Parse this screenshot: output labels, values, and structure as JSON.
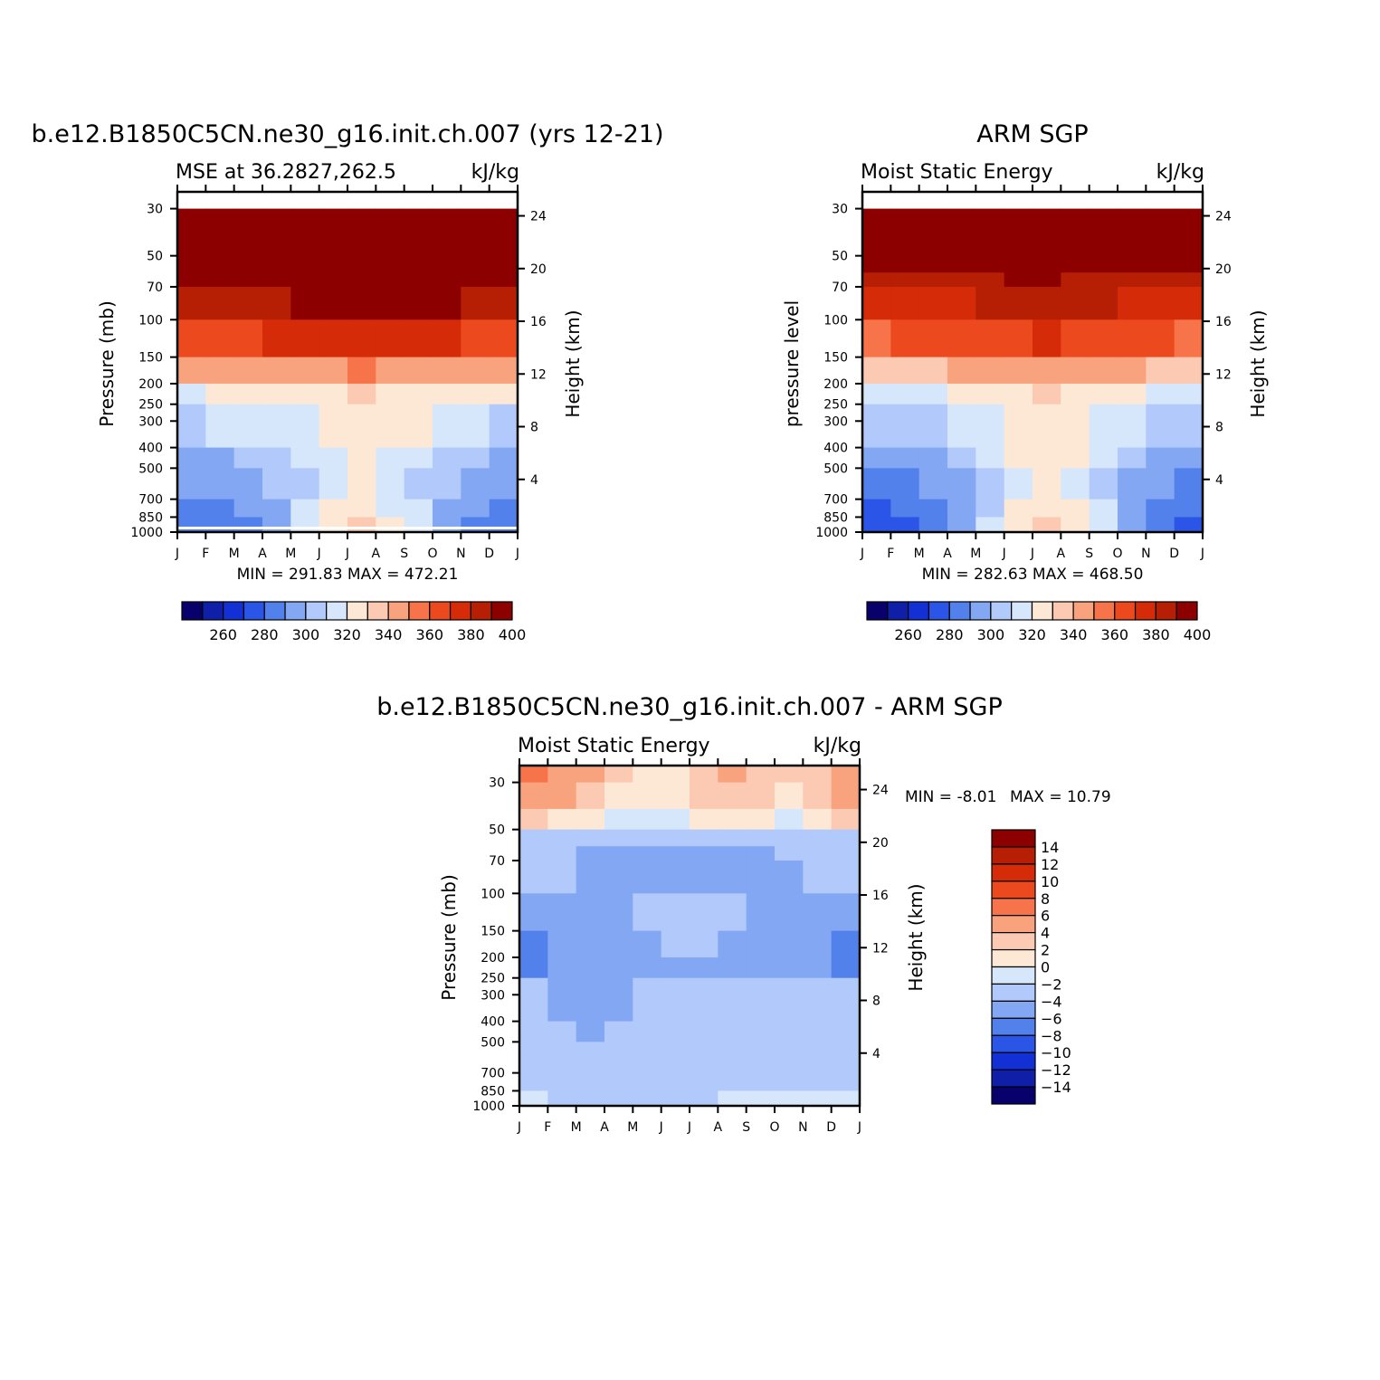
{
  "chart_data": [
    {
      "type": "heatmap",
      "id": "model",
      "title": "b.e12.B1850C5CN.ne30_g16.init.ch.007 (yrs 12-21)",
      "left_string": "MSE at 36.2827,262.5",
      "units": "kJ/kg",
      "ylabel": "Pressure (mb)",
      "ylabel_right": "Height (km)",
      "months": [
        "J",
        "F",
        "M",
        "A",
        "M",
        "J",
        "J",
        "A",
        "S",
        "O",
        "N",
        "D",
        "J"
      ],
      "pressure_ticks": [
        "30",
        "50",
        "70",
        "100",
        "150",
        "200",
        "250",
        "300",
        "400",
        "500",
        "700",
        "850",
        "1000"
      ],
      "height_ticks": [
        "24",
        "20",
        "16",
        "12",
        "8",
        "4"
      ],
      "stats": "MIN = 291.83 MAX = 472.21",
      "levels_colorbar": [
        "260",
        "280",
        "300",
        "320",
        "340",
        "360",
        "380",
        "400"
      ],
      "bottom_white_band": true,
      "bands": [
        {
          "p": 30,
          "v": [
            420,
            420,
            420,
            420,
            420,
            420,
            420,
            420,
            420,
            420,
            420,
            420,
            420
          ]
        },
        {
          "p": 50,
          "v": [
            420,
            420,
            420,
            420,
            420,
            420,
            420,
            420,
            420,
            420,
            420,
            420,
            420
          ]
        },
        {
          "p": 60,
          "v": [
            405,
            407,
            409,
            410,
            411,
            412,
            413,
            413,
            413,
            412,
            410,
            408,
            405
          ]
        },
        {
          "p": 70,
          "v": [
            396,
            397,
            398,
            399,
            400,
            401,
            402,
            403,
            402,
            401,
            399,
            397,
            396
          ]
        },
        {
          "p": 100,
          "v": [
            376,
            377,
            379,
            380,
            381,
            383,
            384,
            384,
            383,
            381,
            379,
            377,
            376
          ]
        },
        {
          "p": 150,
          "v": [
            351,
            352,
            354,
            356,
            357,
            359,
            360,
            360,
            359,
            357,
            354,
            352,
            351
          ]
        },
        {
          "p": 200,
          "v": [
            329,
            330,
            332,
            335,
            337,
            339,
            340,
            340,
            339,
            337,
            333,
            331,
            329
          ]
        },
        {
          "p": 250,
          "v": [
            318,
            319,
            321,
            324,
            327,
            331,
            335,
            336,
            333,
            328,
            323,
            320,
            318
          ]
        },
        {
          "p": 400,
          "v": [
            308,
            309,
            310,
            313,
            318,
            326,
            333,
            333,
            326,
            318,
            312,
            309,
            308
          ]
        },
        {
          "p": 500,
          "v": [
            302,
            304,
            305,
            308,
            314,
            323,
            330,
            331,
            323,
            314,
            308,
            304,
            302
          ]
        },
        {
          "p": 700,
          "v": [
            295,
            297,
            300,
            304,
            313,
            327,
            333,
            333,
            326,
            315,
            304,
            298,
            295
          ]
        },
        {
          "p": 850,
          "v": [
            292,
            293,
            296,
            301,
            316,
            333,
            343,
            345,
            334,
            317,
            302,
            294,
            292
          ]
        },
        {
          "p": 1000,
          "v": [
            292,
            293,
            296,
            301,
            316,
            333,
            343,
            345,
            334,
            317,
            302,
            294,
            292
          ]
        }
      ]
    },
    {
      "type": "heatmap",
      "id": "obs",
      "title": "ARM SGP",
      "left_string": "Moist Static Energy",
      "units": "kJ/kg",
      "ylabel": "pressure level",
      "ylabel_right": "Height (km)",
      "months": [
        "J",
        "F",
        "M",
        "A",
        "M",
        "J",
        "J",
        "A",
        "S",
        "O",
        "N",
        "D",
        "J"
      ],
      "pressure_ticks": [
        "30",
        "50",
        "70",
        "100",
        "150",
        "200",
        "250",
        "300",
        "400",
        "500",
        "700",
        "850",
        "1000"
      ],
      "height_ticks": [
        "24",
        "20",
        "16",
        "12",
        "8",
        "4"
      ],
      "stats": "MIN = 282.63 MAX = 468.50",
      "levels_colorbar": [
        "260",
        "280",
        "300",
        "320",
        "340",
        "360",
        "380",
        "400"
      ],
      "bottom_white_band": false,
      "bands": [
        {
          "p": 30,
          "v": [
            420,
            420,
            420,
            420,
            420,
            420,
            420,
            420,
            420,
            420,
            420,
            420,
            420
          ]
        },
        {
          "p": 50,
          "v": [
            420,
            420,
            420,
            420,
            420,
            420,
            420,
            420,
            420,
            420,
            420,
            420,
            420
          ]
        },
        {
          "p": 60,
          "v": [
            395,
            396,
            397,
            398,
            399,
            400,
            400,
            400,
            399,
            398,
            397,
            396,
            395
          ]
        },
        {
          "p": 70,
          "v": [
            384,
            385,
            387,
            388,
            389,
            391,
            392,
            392,
            391,
            389,
            387,
            385,
            384
          ]
        },
        {
          "p": 100,
          "v": [
            368,
            369,
            371,
            373,
            375,
            378,
            380,
            380,
            378,
            375,
            372,
            369,
            368
          ]
        },
        {
          "p": 150,
          "v": [
            344,
            345,
            347,
            350,
            353,
            357,
            359,
            359,
            357,
            353,
            349,
            346,
            344
          ]
        },
        {
          "p": 200,
          "v": [
            323,
            324,
            326,
            330,
            334,
            338,
            341,
            341,
            338,
            333,
            328,
            325,
            323
          ]
        },
        {
          "p": 250,
          "v": [
            312,
            313,
            316,
            320,
            326,
            333,
            337,
            337,
            332,
            325,
            318,
            314,
            312
          ]
        },
        {
          "p": 400,
          "v": [
            304,
            305,
            307,
            311,
            318,
            327,
            334,
            334,
            327,
            318,
            310,
            306,
            304
          ]
        },
        {
          "p": 500,
          "v": [
            296,
            297,
            300,
            305,
            313,
            323,
            330,
            331,
            323,
            313,
            305,
            299,
            296
          ]
        },
        {
          "p": 700,
          "v": [
            288,
            290,
            294,
            300,
            312,
            327,
            334,
            334,
            327,
            313,
            300,
            292,
            288
          ]
        },
        {
          "p": 850,
          "v": [
            284,
            285,
            290,
            298,
            316,
            334,
            343,
            344,
            335,
            316,
            299,
            287,
            284
          ]
        },
        {
          "p": 1000,
          "v": [
            284,
            285,
            290,
            298,
            316,
            334,
            343,
            344,
            335,
            316,
            299,
            287,
            284
          ]
        }
      ]
    },
    {
      "type": "heatmap",
      "id": "diff",
      "title": "b.e12.B1850C5CN.ne30_g16.init.ch.007 - ARM SGP",
      "left_string": "Moist Static Energy",
      "units": "kJ/kg",
      "ylabel": "Pressure (mb)",
      "ylabel_right": "Height (km)",
      "months": [
        "J",
        "F",
        "M",
        "A",
        "M",
        "J",
        "J",
        "A",
        "S",
        "O",
        "N",
        "D",
        "J"
      ],
      "pressure_ticks": [
        "30",
        "50",
        "70",
        "100",
        "150",
        "200",
        "250",
        "300",
        "400",
        "500",
        "700",
        "850",
        "1000"
      ],
      "height_ticks": [
        "24",
        "20",
        "16",
        "12",
        "8",
        "4"
      ],
      "stats_min": "MIN =   -8.01",
      "stats_max": "MAX =   10.79",
      "levels_colorbar": [
        "14",
        "12",
        "10",
        "8",
        "6",
        "4",
        "2",
        "0",
        "−2",
        "−4",
        "−6",
        "−8",
        "−10",
        "−12",
        "−14"
      ],
      "bands": [
        {
          "p": 25,
          "v": [
            7,
            6,
            5,
            3,
            1,
            2,
            1,
            4,
            5,
            2,
            3,
            4,
            7
          ]
        },
        {
          "p": 30,
          "v": [
            6,
            5,
            4,
            2,
            1,
            1,
            1,
            3,
            4,
            1,
            2,
            3,
            6
          ]
        },
        {
          "p": 40,
          "v": [
            3,
            2,
            1,
            0,
            -1,
            0,
            -1,
            1,
            1,
            -1,
            0,
            1,
            3
          ]
        },
        {
          "p": 50,
          "v": [
            -2,
            -3,
            -3,
            -4,
            -4,
            -4,
            -4,
            -4,
            -4,
            -3,
            -3,
            -3,
            -2
          ]
        },
        {
          "p": 60,
          "v": [
            -3,
            -3,
            -4,
            -5,
            -7,
            -5,
            -5,
            -5,
            -5,
            -4,
            -4,
            -3,
            -3
          ]
        },
        {
          "p": 70,
          "v": [
            -3,
            -3,
            -4,
            -5,
            -5,
            -5,
            -5,
            -5,
            -4,
            -5,
            -4,
            -3,
            -3
          ]
        },
        {
          "p": 100,
          "v": [
            -4,
            -5,
            -5,
            -5,
            -4,
            -3,
            -3,
            -3,
            -5,
            -4,
            -5,
            -7,
            -5
          ]
        },
        {
          "p": 150,
          "v": [
            -7,
            -7,
            -5,
            -7,
            -5,
            -4,
            -4,
            -4,
            -5,
            -6,
            -5,
            -7,
            -7
          ]
        },
        {
          "p": 200,
          "v": [
            -7,
            -7,
            -5,
            -5,
            -5,
            -5,
            -5,
            -5,
            -5,
            -5,
            -5,
            -6,
            -7
          ]
        },
        {
          "p": 250,
          "v": [
            -4,
            -4,
            -5,
            -5,
            -4,
            -3,
            -3,
            -3,
            -4,
            -4,
            -3,
            -3,
            -4
          ]
        },
        {
          "p": 400,
          "v": [
            -3,
            -3,
            -4,
            -5,
            -3,
            -3,
            -3,
            -3,
            -2,
            -3,
            -2,
            -3,
            -3
          ]
        },
        {
          "p": 500,
          "v": [
            -3,
            -3,
            -3,
            -5,
            -3,
            -3,
            -3,
            -3,
            -2,
            -3,
            -2,
            -3,
            -3
          ]
        },
        {
          "p": 700,
          "v": [
            -3,
            -3,
            -3,
            -3,
            -3,
            -4,
            -3,
            -4,
            -2,
            -4,
            -2,
            -3,
            -3
          ]
        },
        {
          "p": 850,
          "v": [
            -2,
            -2,
            -3,
            -3,
            -3,
            -3,
            -3,
            -3,
            1,
            -3,
            -1,
            -2,
            -2
          ]
        },
        {
          "p": 1000,
          "v": [
            -2,
            -2,
            -3,
            -3,
            -3,
            -3,
            -3,
            -3,
            1,
            -3,
            -1,
            -2,
            -2
          ]
        }
      ]
    }
  ]
}
